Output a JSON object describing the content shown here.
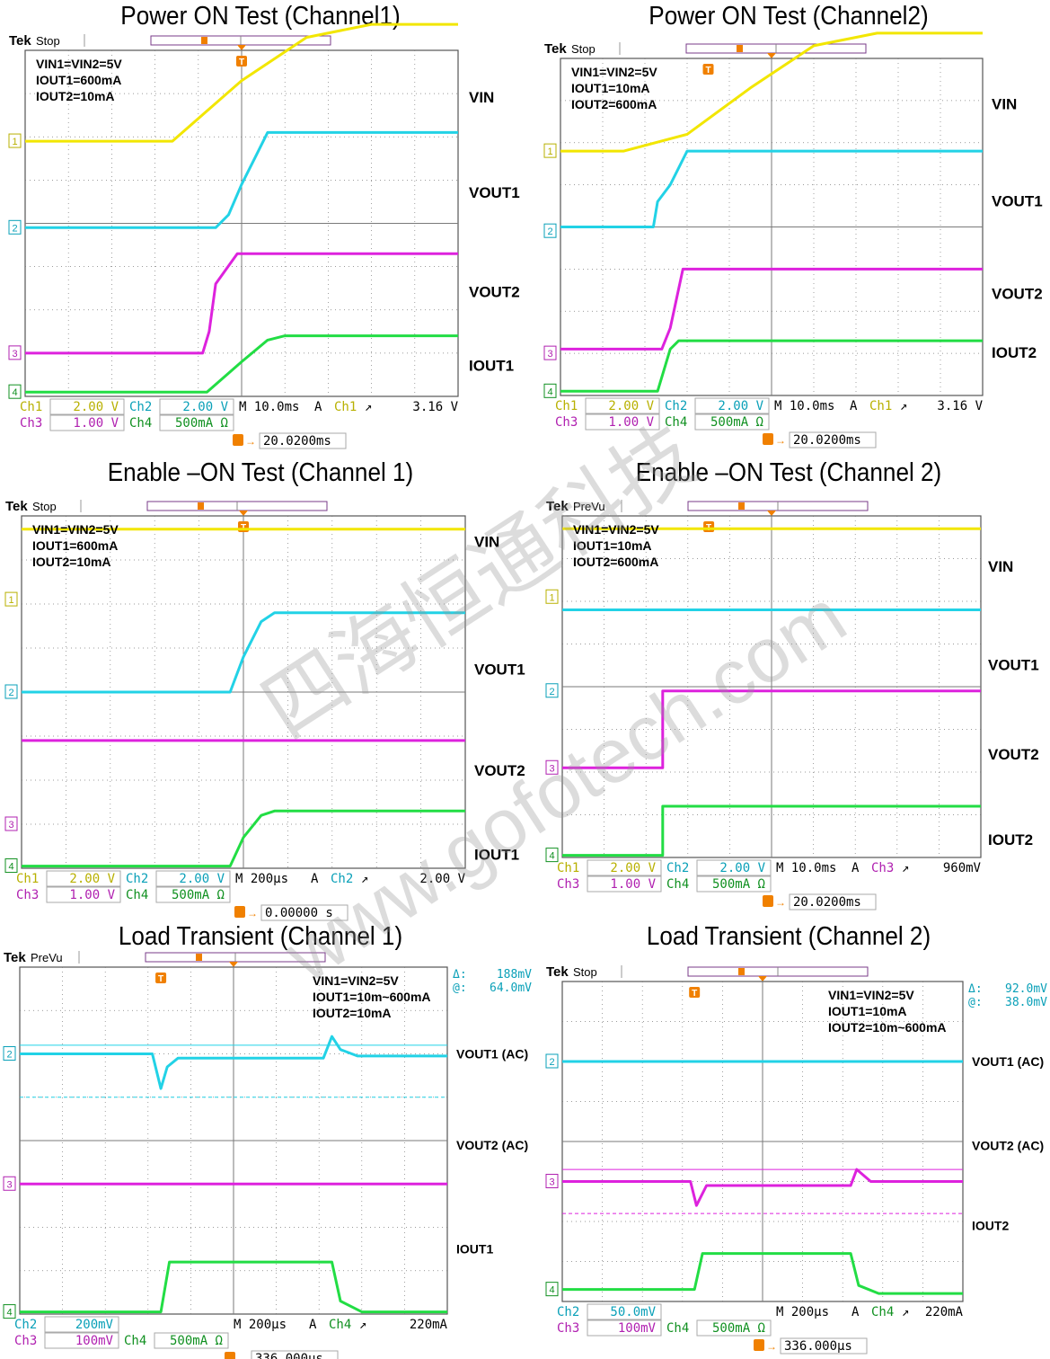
{
  "colors": {
    "ch1": "#f2e600",
    "ch2": "#22d2e6",
    "ch3": "#dd22dd",
    "ch4": "#22dd44",
    "grid": "#7a7a7a",
    "trigger": "#f08000",
    "ch1_text": "#b8b000",
    "ch2_text": "#0aa0b8",
    "ch3_text": "#b020b0",
    "ch4_text": "#109020"
  },
  "watermark": {
    "line1": "四海恒通科技",
    "line2": "www.gofotech.com"
  },
  "panels": [
    {
      "title": "Power ON Test (Channel1)",
      "tek_status": "Stop",
      "conditions": [
        "VIN1=VIN2=5V",
        "IOUT1=600mA",
        "IOUT2=10mA"
      ],
      "labels": [
        "VIN",
        "VOUT1",
        "VOUT2",
        "IOUT1"
      ],
      "delta": null,
      "settings": {
        "row1": [
          [
            "Ch1",
            "2.00 V"
          ],
          [
            "Ch2",
            "2.00 V"
          ]
        ],
        "row2": [
          [
            "Ch3",
            "1.00 V"
          ],
          [
            "Ch4",
            "500mA Ω"
          ]
        ],
        "timebase": "M 10.0ms",
        "trig_prefix": "A",
        "trig_src": "Ch1",
        "trig_level": "3.16 V",
        "position": "20.0200ms"
      },
      "chart_data": {
        "type": "line",
        "xlabel": "",
        "ylabel": "",
        "x_unit": "div",
        "series": [
          {
            "channel": "Ch1",
            "x": [
              0,
              3.4,
              5,
              6.5,
              8,
              10
            ],
            "y": [
              5.9,
              5.9,
              7.3,
              8.3,
              8.6,
              8.6
            ]
          },
          {
            "channel": "Ch2",
            "x": [
              0,
              4.4,
              4.7,
              5,
              5.3,
              5.6,
              10
            ],
            "y": [
              3.9,
              3.9,
              4.2,
              4.9,
              5.5,
              6.1,
              6.1
            ]
          },
          {
            "channel": "Ch3",
            "x": [
              0,
              4.1,
              4.25,
              4.4,
              4.9,
              10
            ],
            "y": [
              1.0,
              1.0,
              1.5,
              2.6,
              3.3,
              3.3
            ]
          },
          {
            "channel": "Ch4",
            "x": [
              0,
              4.2,
              5,
              5.6,
              6,
              10
            ],
            "y": [
              0.1,
              0.1,
              0.8,
              1.3,
              1.4,
              1.4
            ]
          }
        ]
      }
    },
    {
      "title": "Power ON Test (Channel2)",
      "tek_status": "Stop",
      "conditions": [
        "VIN1=VIN2=5V",
        "IOUT1=10mA",
        "IOUT2=600mA"
      ],
      "labels": [
        "VIN",
        "VOUT1",
        "VOUT2",
        "IOUT2"
      ],
      "delta": null,
      "settings": {
        "row1": [
          [
            "Ch1",
            "2.00 V"
          ],
          [
            "Ch2",
            "2.00 V"
          ]
        ],
        "row2": [
          [
            "Ch3",
            "1.00 V"
          ],
          [
            "Ch4",
            "500mA Ω"
          ]
        ],
        "timebase": "M 10.0ms",
        "trig_prefix": "A",
        "trig_src": "Ch1",
        "trig_level": "3.16 V",
        "position": "20.0200ms"
      },
      "chart_data": {
        "type": "line",
        "xlabel": "",
        "ylabel": "",
        "x_unit": "div",
        "series": [
          {
            "channel": "Ch1",
            "x": [
              0,
              1.5,
              3,
              4.5,
              6,
              7.5,
              10
            ],
            "y": [
              5.8,
              5.8,
              6.2,
              7.3,
              8.3,
              8.6,
              8.6
            ]
          },
          {
            "channel": "Ch2",
            "x": [
              0,
              2.2,
              2.3,
              2.6,
              3,
              10
            ],
            "y": [
              4.0,
              4.0,
              4.6,
              5.0,
              5.8,
              5.8
            ]
          },
          {
            "channel": "Ch3",
            "x": [
              0,
              2.4,
              2.6,
              2.9,
              10
            ],
            "y": [
              1.1,
              1.1,
              1.6,
              3.0,
              3.0
            ]
          },
          {
            "channel": "Ch4",
            "x": [
              0,
              2.3,
              2.6,
              2.8,
              10
            ],
            "y": [
              0.1,
              0.1,
              1.1,
              1.3,
              1.3
            ]
          }
        ]
      }
    },
    {
      "title": "Enable –ON Test (Channel 1)",
      "tek_status": "Stop",
      "conditions": [
        "VIN1=VIN2=5V",
        "IOUT1=600mA",
        "IOUT2=10mA"
      ],
      "labels": [
        "VIN",
        "VOUT1",
        "VOUT2",
        "IOUT1"
      ],
      "delta": null,
      "settings": {
        "row1": [
          [
            "Ch1",
            "2.00 V"
          ],
          [
            "Ch2",
            "2.00 V"
          ]
        ],
        "row2": [
          [
            "Ch3",
            "1.00 V"
          ],
          [
            "Ch4",
            "500mA Ω"
          ]
        ],
        "timebase": "M 200µs",
        "trig_prefix": "A",
        "trig_src": "Ch2",
        "trig_level": "2.00 V",
        "position": "0.00000 s"
      },
      "chart_data": {
        "type": "line",
        "xlabel": "",
        "ylabel": "",
        "x_unit": "div",
        "series": [
          {
            "channel": "Ch1",
            "x": [
              0,
              10
            ],
            "y": [
              7.7,
              7.7
            ]
          },
          {
            "channel": "Ch2",
            "x": [
              0,
              4.7,
              5.0,
              5.4,
              5.7,
              10
            ],
            "y": [
              4.0,
              4.0,
              4.8,
              5.6,
              5.8,
              5.8
            ]
          },
          {
            "channel": "Ch3",
            "x": [
              0,
              10
            ],
            "y": [
              2.9,
              2.9
            ]
          },
          {
            "channel": "Ch4",
            "x": [
              0,
              4.7,
              5.0,
              5.4,
              5.7,
              10
            ],
            "y": [
              0.05,
              0.05,
              0.7,
              1.2,
              1.3,
              1.3
            ]
          }
        ]
      }
    },
    {
      "title": "Enable –ON Test (Channel 2)",
      "tek_status": "PreVu",
      "conditions": [
        "VIN1=VIN2=5V",
        "IOUT1=10mA",
        "IOUT2=600mA"
      ],
      "labels": [
        "VIN",
        "VOUT1",
        "VOUT2",
        "IOUT2"
      ],
      "delta": null,
      "settings": {
        "row1": [
          [
            "Ch1",
            "2.00 V"
          ],
          [
            "Ch2",
            "2.00 V"
          ]
        ],
        "row2": [
          [
            "Ch3",
            "1.00 V"
          ],
          [
            "Ch4",
            "500mA Ω"
          ]
        ],
        "timebase": "M 10.0ms",
        "trig_prefix": "A",
        "trig_src": "Ch3",
        "trig_level": "960mV",
        "position": "20.0200ms"
      },
      "chart_data": {
        "type": "line",
        "xlabel": "",
        "ylabel": "",
        "x_unit": "div",
        "series": [
          {
            "channel": "Ch1",
            "x": [
              0,
              10
            ],
            "y": [
              7.7,
              7.7
            ]
          },
          {
            "channel": "Ch2",
            "x": [
              0,
              10
            ],
            "y": [
              5.8,
              5.8
            ]
          },
          {
            "channel": "Ch3",
            "x": [
              0,
              2.4,
              2.4,
              10
            ],
            "y": [
              2.1,
              2.1,
              3.9,
              3.9
            ]
          },
          {
            "channel": "Ch4",
            "x": [
              0,
              2.4,
              2.4,
              10
            ],
            "y": [
              0.05,
              0.05,
              1.2,
              1.2
            ]
          }
        ]
      }
    },
    {
      "title": "Load Transient (Channel 1)",
      "tek_status": "PreVu",
      "conditions": [
        "VIN1=VIN2=5V",
        "IOUT1=10m~600mA",
        "IOUT2=10mA"
      ],
      "labels": [
        "VOUT1 (AC)",
        "VOUT2 (AC)",
        "IOUT1"
      ],
      "delta": {
        "d": "188mV",
        "at": "64.0mV"
      },
      "settings": {
        "row1": [
          [
            "Ch2",
            "200mV"
          ]
        ],
        "row2": [
          [
            "Ch3",
            "100mV"
          ],
          [
            "Ch4",
            "500mA Ω"
          ]
        ],
        "timebase": "M 200µs",
        "trig_prefix": "A",
        "trig_src": "Ch4",
        "trig_level": "220mA",
        "position": "336.000µs"
      },
      "chart_data": {
        "type": "line",
        "xlabel": "",
        "ylabel": "",
        "x_unit": "div",
        "series": [
          {
            "channel": "Ch2",
            "x": [
              0,
              3.1,
              3.3,
              3.45,
              3.7,
              7.1,
              7.3,
              7.5,
              7.9,
              10
            ],
            "y": [
              6.0,
              6.0,
              5.2,
              5.7,
              5.9,
              5.9,
              6.4,
              6.1,
              5.95,
              5.95
            ]
          },
          {
            "channel": "Ch3",
            "x": [
              0,
              10
            ],
            "y": [
              3.0,
              3.0
            ]
          },
          {
            "channel": "Ch4",
            "x": [
              0,
              3.3,
              3.5,
              7.3,
              7.5,
              8.0,
              10
            ],
            "y": [
              0.05,
              0.05,
              1.2,
              1.2,
              0.3,
              0.05,
              0.05
            ]
          }
        ]
      }
    },
    {
      "title": "Load Transient (Channel 2)",
      "tek_status": "Stop",
      "conditions": [
        "VIN1=VIN2=5V",
        "IOUT1=10mA",
        "IOUT2=10m~600mA"
      ],
      "labels": [
        "VOUT1 (AC)",
        "VOUT2 (AC)",
        "IOUT2"
      ],
      "delta": {
        "d": "92.0mV",
        "at": "38.0mV"
      },
      "settings": {
        "row1": [
          [
            "Ch2",
            "50.0mV"
          ]
        ],
        "row2": [
          [
            "Ch3",
            "100mV"
          ],
          [
            "Ch4",
            "500mA Ω"
          ]
        ],
        "timebase": "M 200µs",
        "trig_prefix": "A",
        "trig_src": "Ch4",
        "trig_level": "220mA",
        "position": "336.000µs"
      },
      "chart_data": {
        "type": "line",
        "xlabel": "",
        "ylabel": "",
        "x_unit": "div",
        "series": [
          {
            "channel": "Ch2",
            "x": [
              0,
              10
            ],
            "y": [
              6.0,
              6.0
            ]
          },
          {
            "channel": "Ch3",
            "x": [
              0,
              3.2,
              3.35,
              3.6,
              7.2,
              7.35,
              7.7,
              10
            ],
            "y": [
              3.0,
              3.0,
              2.4,
              2.9,
              2.9,
              3.3,
              3.0,
              3.0
            ]
          },
          {
            "channel": "Ch4",
            "x": [
              0,
              3.3,
              3.5,
              7.2,
              7.4,
              7.9,
              10
            ],
            "y": [
              0.3,
              0.3,
              1.2,
              1.2,
              0.4,
              0.2,
              0.2
            ]
          }
        ]
      }
    }
  ]
}
